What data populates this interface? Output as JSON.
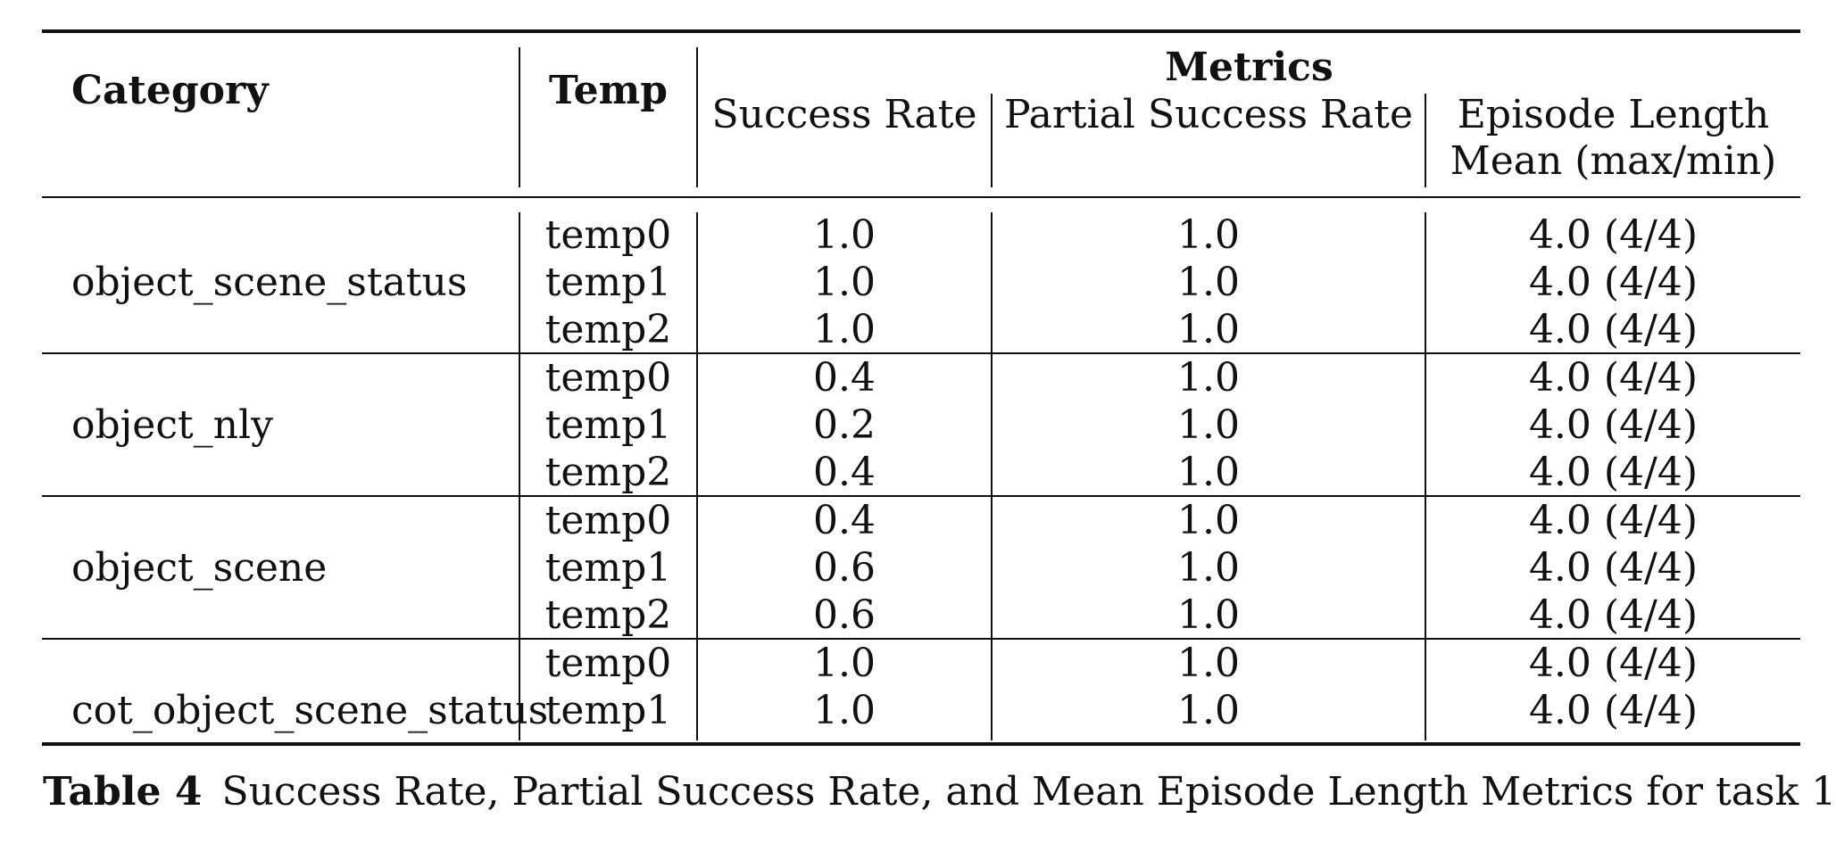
{
  "table": {
    "headers": {
      "category": "Category",
      "temp": "Temp",
      "metrics_group": "Metrics",
      "success_rate": "Success Rate",
      "partial_success_rate": "Partial Success Rate",
      "episode_length_line1": "Episode Length",
      "episode_length_line2": "Mean (max/min)"
    },
    "groups": [
      {
        "category": "object_scene_status",
        "rows": [
          {
            "temp": "temp0",
            "success": "1.0",
            "partial": "1.0",
            "episode": "4.0 (4/4)"
          },
          {
            "temp": "temp1",
            "success": "1.0",
            "partial": "1.0",
            "episode": "4.0 (4/4)"
          },
          {
            "temp": "temp2",
            "success": "1.0",
            "partial": "1.0",
            "episode": "4.0 (4/4)"
          }
        ]
      },
      {
        "category": "object_nly",
        "rows": [
          {
            "temp": "temp0",
            "success": "0.4",
            "partial": "1.0",
            "episode": "4.0 (4/4)"
          },
          {
            "temp": "temp1",
            "success": "0.2",
            "partial": "1.0",
            "episode": "4.0 (4/4)"
          },
          {
            "temp": "temp2",
            "success": "0.4",
            "partial": "1.0",
            "episode": "4.0 (4/4)"
          }
        ]
      },
      {
        "category": "object_scene",
        "rows": [
          {
            "temp": "temp0",
            "success": "0.4",
            "partial": "1.0",
            "episode": "4.0 (4/4)"
          },
          {
            "temp": "temp1",
            "success": "0.6",
            "partial": "1.0",
            "episode": "4.0 (4/4)"
          },
          {
            "temp": "temp2",
            "success": "0.6",
            "partial": "1.0",
            "episode": "4.0 (4/4)"
          }
        ]
      },
      {
        "category": "cot_object_scene_status",
        "rows": [
          {
            "temp": "temp0",
            "success": "1.0",
            "partial": "1.0",
            "episode": "4.0 (4/4)"
          },
          {
            "temp": "temp1",
            "success": "1.0",
            "partial": "1.0",
            "episode": "4.0 (4/4)"
          }
        ]
      }
    ]
  },
  "caption": {
    "label": "Table 4",
    "text": "Success Rate, Partial Success Rate, and Mean Episode Length Metrics for task 1"
  }
}
